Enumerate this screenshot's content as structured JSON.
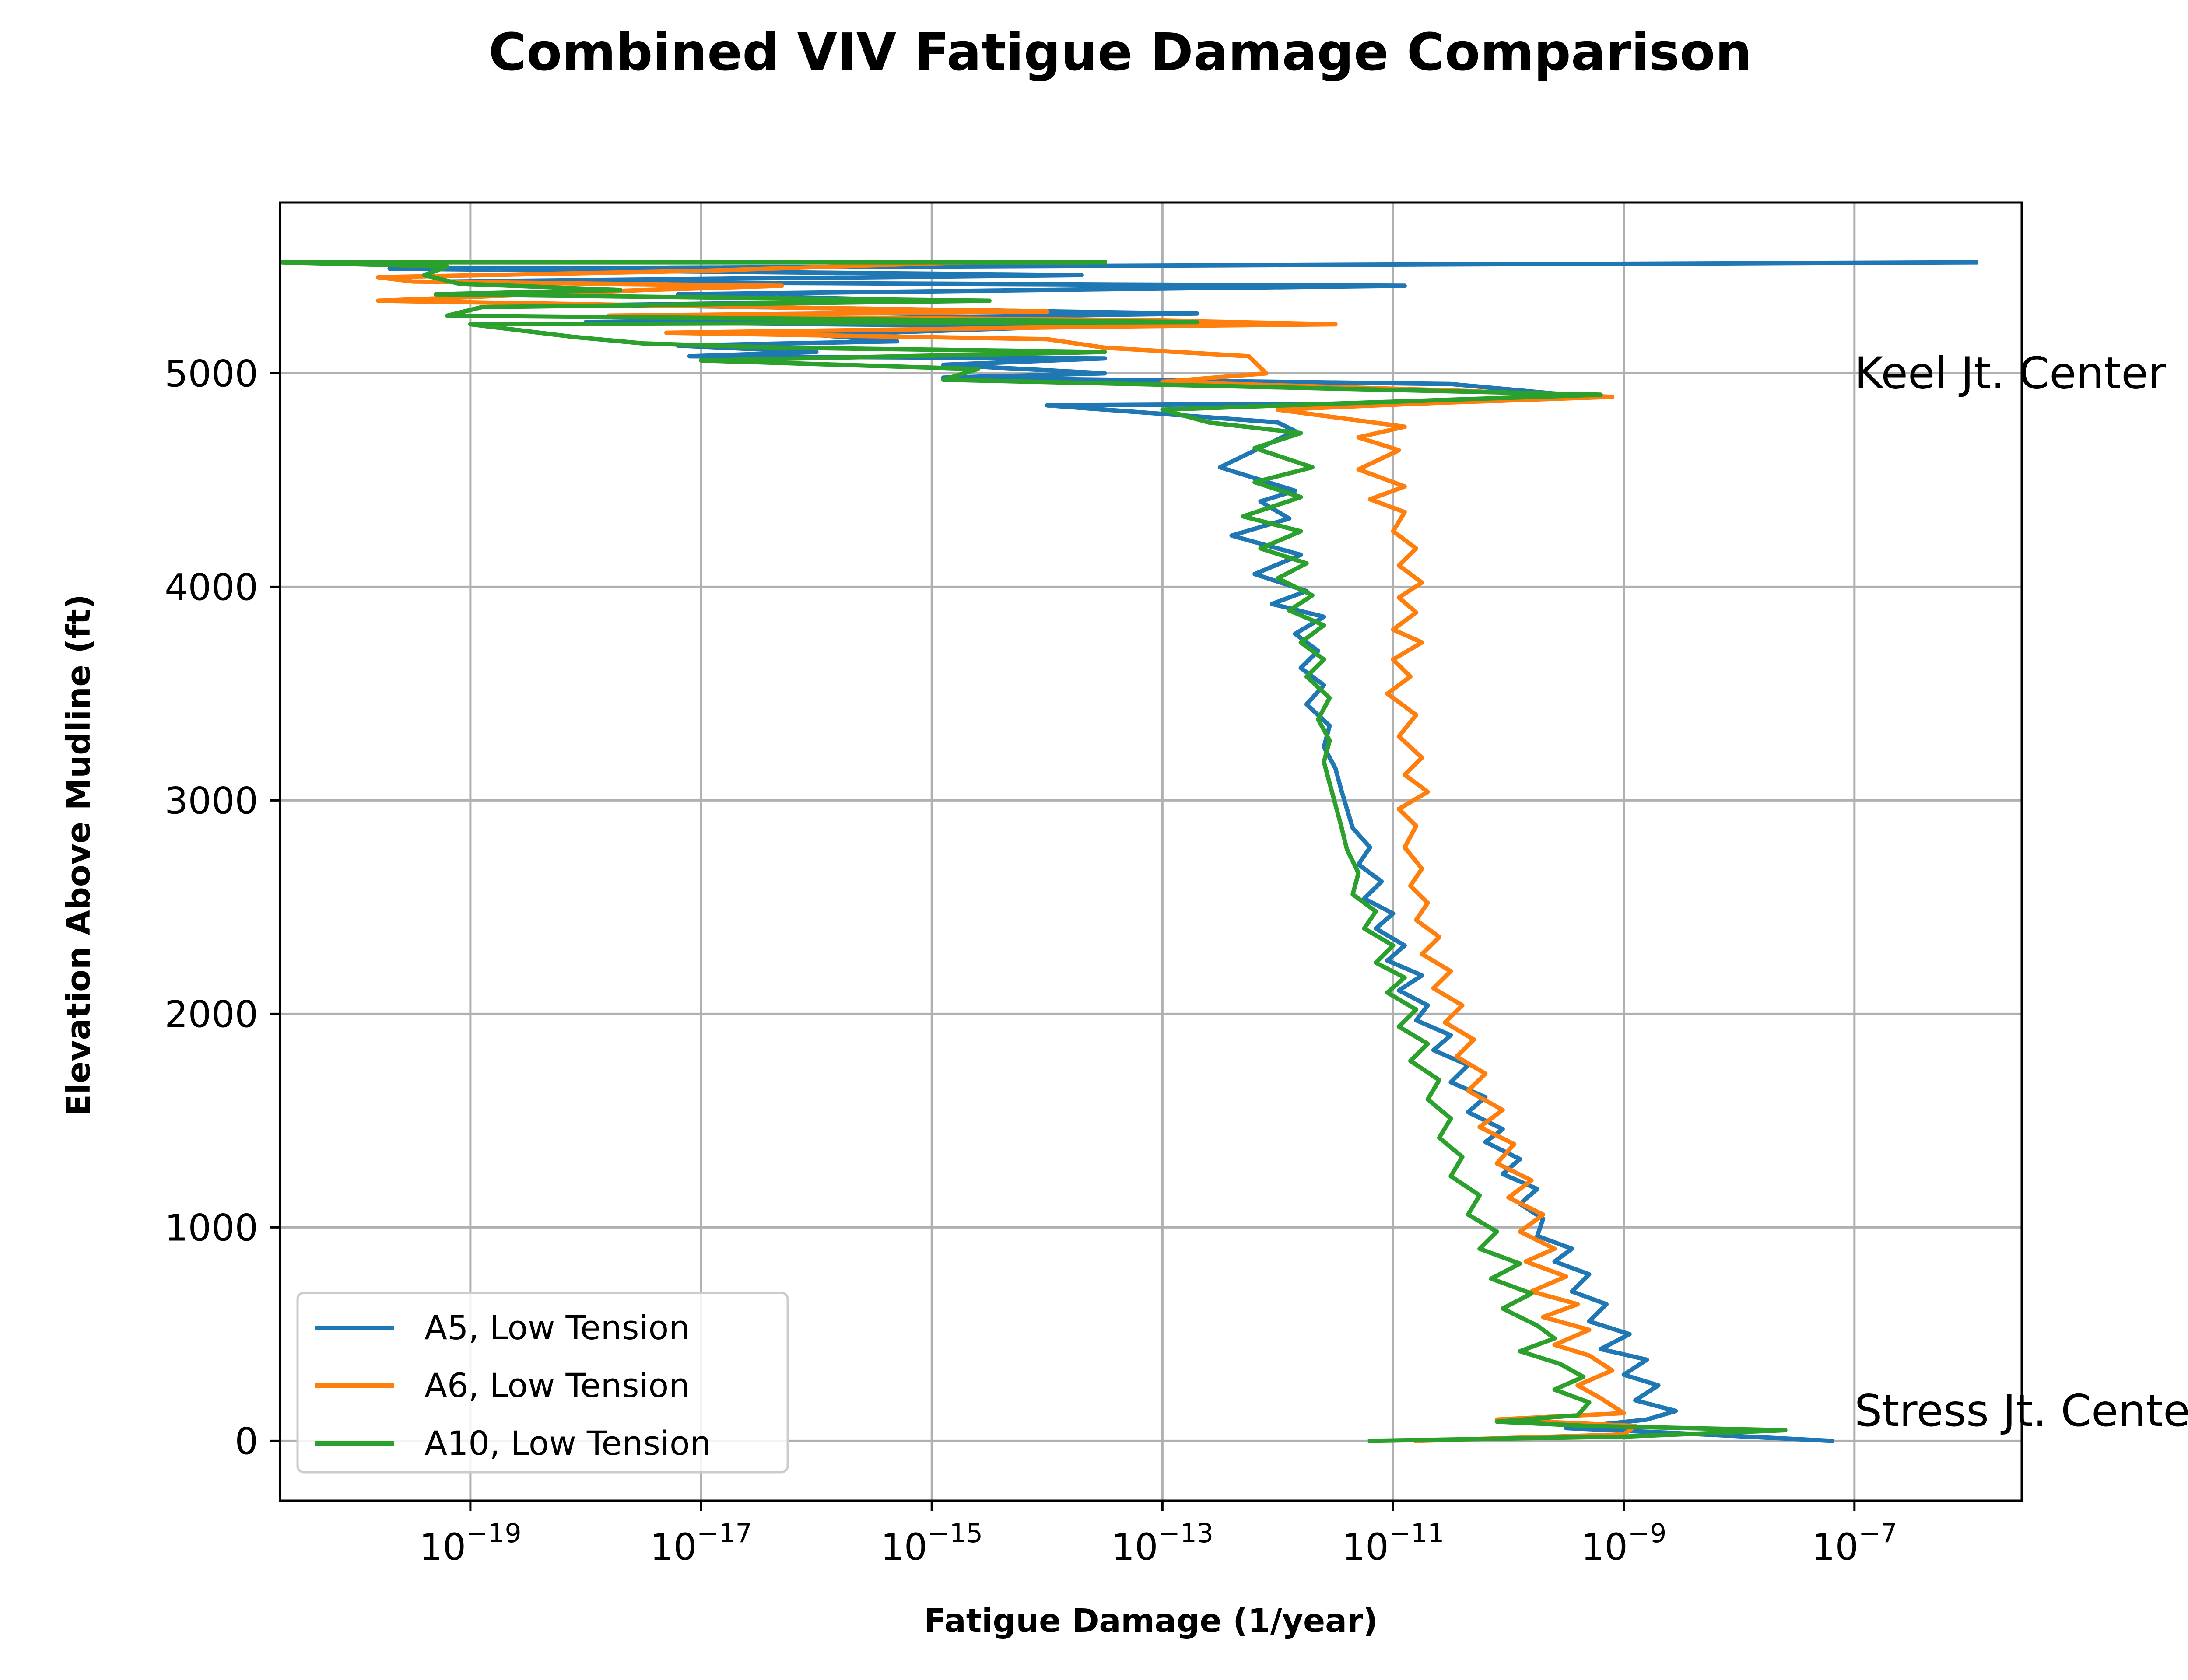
{
  "chart_data": {
    "type": "line",
    "title": "Combined VIV Fatigue Damage Comparison",
    "xlabel": "Fatigue Damage (1/year)",
    "ylabel": "Elevation Above Mudline (ft)",
    "xscale": "log",
    "xlim_log10": [
      -20.65,
      -5.55
    ],
    "ylim": [
      -280,
      5800
    ],
    "x_ticks": [
      {
        "exp": -19,
        "base": "10",
        "sup": "−19"
      },
      {
        "exp": -17,
        "base": "10",
        "sup": "−17"
      },
      {
        "exp": -15,
        "base": "10",
        "sup": "−15"
      },
      {
        "exp": -13,
        "base": "10",
        "sup": "−13"
      },
      {
        "exp": -11,
        "base": "10",
        "sup": "−11"
      },
      {
        "exp": -9,
        "base": "10",
        "sup": "−9"
      },
      {
        "exp": -7,
        "base": "10",
        "sup": "−7"
      }
    ],
    "y_ticks": [
      0,
      1000,
      2000,
      3000,
      4000,
      5000
    ],
    "grid": true,
    "legend_position": "lower-left",
    "annotations": [
      {
        "text": "Keel Jt. Center",
        "x_log10": -7.0,
        "y": 4930
      },
      {
        "text": "Stress Jt. Center",
        "x_log10": -7.0,
        "y": 70
      }
    ],
    "series": [
      {
        "name": "A5, Low Tension",
        "color": "#1f77b4",
        "points": [
          [
            -7.2,
            0
          ],
          [
            -8.3,
            30
          ],
          [
            -9.5,
            60
          ],
          [
            -8.8,
            100
          ],
          [
            -8.55,
            140
          ],
          [
            -8.9,
            190
          ],
          [
            -8.7,
            260
          ],
          [
            -9.0,
            310
          ],
          [
            -8.8,
            380
          ],
          [
            -9.2,
            430
          ],
          [
            -8.95,
            500
          ],
          [
            -9.3,
            560
          ],
          [
            -9.15,
            640
          ],
          [
            -9.45,
            700
          ],
          [
            -9.3,
            780
          ],
          [
            -9.6,
            840
          ],
          [
            -9.45,
            900
          ],
          [
            -9.75,
            960
          ],
          [
            -9.7,
            1040
          ],
          [
            -9.9,
            1110
          ],
          [
            -9.75,
            1180
          ],
          [
            -10.05,
            1250
          ],
          [
            -9.9,
            1320
          ],
          [
            -10.2,
            1400
          ],
          [
            -10.05,
            1460
          ],
          [
            -10.35,
            1540
          ],
          [
            -10.2,
            1610
          ],
          [
            -10.5,
            1680
          ],
          [
            -10.35,
            1760
          ],
          [
            -10.65,
            1830
          ],
          [
            -10.5,
            1900
          ],
          [
            -10.8,
            1970
          ],
          [
            -10.7,
            2040
          ],
          [
            -10.95,
            2110
          ],
          [
            -10.75,
            2180
          ],
          [
            -11.05,
            2250
          ],
          [
            -10.9,
            2320
          ],
          [
            -11.15,
            2400
          ],
          [
            -11.0,
            2470
          ],
          [
            -11.25,
            2540
          ],
          [
            -11.1,
            2620
          ],
          [
            -11.3,
            2700
          ],
          [
            -11.2,
            2780
          ],
          [
            -11.35,
            2870
          ],
          [
            -11.4,
            2960
          ],
          [
            -11.45,
            3050
          ],
          [
            -11.5,
            3150
          ],
          [
            -11.6,
            3250
          ],
          [
            -11.55,
            3350
          ],
          [
            -11.75,
            3450
          ],
          [
            -11.6,
            3540
          ],
          [
            -11.8,
            3620
          ],
          [
            -11.65,
            3700
          ],
          [
            -11.85,
            3780
          ],
          [
            -11.6,
            3860
          ],
          [
            -12.05,
            3920
          ],
          [
            -11.75,
            3980
          ],
          [
            -12.2,
            4060
          ],
          [
            -11.8,
            4150
          ],
          [
            -12.4,
            4240
          ],
          [
            -11.9,
            4320
          ],
          [
            -12.15,
            4400
          ],
          [
            -11.85,
            4450
          ],
          [
            -12.5,
            4560
          ],
          [
            -11.85,
            4730
          ],
          [
            -12.0,
            4770
          ],
          [
            -14.0,
            4850
          ],
          [
            -10.7,
            4860
          ],
          [
            -9.5,
            4900
          ],
          [
            -10.5,
            4950
          ],
          [
            -14.9,
            4980
          ],
          [
            -13.5,
            5000
          ],
          [
            -14.9,
            5040
          ],
          [
            -13.5,
            5070
          ],
          [
            -17.1,
            5080
          ],
          [
            -16.0,
            5100
          ],
          [
            -17.2,
            5130
          ],
          [
            -15.3,
            5150
          ],
          [
            -16.0,
            5180
          ],
          [
            -13.8,
            5220
          ],
          [
            -18.0,
            5240
          ],
          [
            -12.7,
            5280
          ],
          [
            -17.8,
            5320
          ],
          [
            -15.0,
            5340
          ],
          [
            -17.2,
            5370
          ],
          [
            -10.9,
            5410
          ],
          [
            -19.2,
            5430
          ],
          [
            -13.7,
            5460
          ],
          [
            -19.7,
            5490
          ],
          [
            -5.95,
            5520
          ]
        ]
      },
      {
        "name": "A6, Low Tension",
        "color": "#ff7f0e",
        "points": [
          [
            -10.8,
            0
          ],
          [
            -9.0,
            30
          ],
          [
            -8.9,
            70
          ],
          [
            -10.1,
            100
          ],
          [
            -9.0,
            130
          ],
          [
            -9.2,
            200
          ],
          [
            -9.4,
            260
          ],
          [
            -9.1,
            330
          ],
          [
            -9.3,
            400
          ],
          [
            -9.6,
            450
          ],
          [
            -9.3,
            520
          ],
          [
            -9.7,
            580
          ],
          [
            -9.4,
            640
          ],
          [
            -9.8,
            700
          ],
          [
            -9.5,
            770
          ],
          [
            -9.85,
            840
          ],
          [
            -9.6,
            900
          ],
          [
            -9.9,
            980
          ],
          [
            -9.7,
            1060
          ],
          [
            -10.0,
            1140
          ],
          [
            -9.8,
            1220
          ],
          [
            -10.1,
            1300
          ],
          [
            -9.95,
            1390
          ],
          [
            -10.25,
            1470
          ],
          [
            -10.05,
            1550
          ],
          [
            -10.35,
            1640
          ],
          [
            -10.2,
            1720
          ],
          [
            -10.45,
            1800
          ],
          [
            -10.3,
            1880
          ],
          [
            -10.55,
            1960
          ],
          [
            -10.4,
            2040
          ],
          [
            -10.65,
            2120
          ],
          [
            -10.5,
            2200
          ],
          [
            -10.75,
            2280
          ],
          [
            -10.6,
            2360
          ],
          [
            -10.8,
            2440
          ],
          [
            -10.7,
            2520
          ],
          [
            -10.85,
            2600
          ],
          [
            -10.75,
            2680
          ],
          [
            -10.9,
            2780
          ],
          [
            -10.8,
            2880
          ],
          [
            -10.95,
            2960
          ],
          [
            -10.7,
            3040
          ],
          [
            -10.9,
            3120
          ],
          [
            -10.75,
            3200
          ],
          [
            -10.95,
            3300
          ],
          [
            -10.8,
            3400
          ],
          [
            -11.05,
            3500
          ],
          [
            -10.85,
            3580
          ],
          [
            -11.0,
            3660
          ],
          [
            -10.75,
            3740
          ],
          [
            -11.0,
            3800
          ],
          [
            -10.8,
            3880
          ],
          [
            -10.95,
            3950
          ],
          [
            -10.75,
            4020
          ],
          [
            -10.95,
            4100
          ],
          [
            -10.8,
            4180
          ],
          [
            -11.0,
            4260
          ],
          [
            -10.9,
            4350
          ],
          [
            -11.2,
            4410
          ],
          [
            -10.9,
            4470
          ],
          [
            -11.3,
            4550
          ],
          [
            -10.95,
            4640
          ],
          [
            -11.3,
            4700
          ],
          [
            -10.9,
            4750
          ],
          [
            -12.0,
            4830
          ],
          [
            -10.7,
            4860
          ],
          [
            -9.1,
            4890
          ],
          [
            -10.5,
            4920
          ],
          [
            -13.0,
            4960
          ],
          [
            -12.1,
            5000
          ],
          [
            -12.25,
            5080
          ],
          [
            -13.5,
            5120
          ],
          [
            -14.0,
            5160
          ],
          [
            -17.3,
            5190
          ],
          [
            -13.3,
            5220
          ],
          [
            -11.5,
            5230
          ],
          [
            -13.3,
            5250
          ],
          [
            -17.8,
            5270
          ],
          [
            -14.0,
            5290
          ],
          [
            -16.5,
            5310
          ],
          [
            -19.8,
            5340
          ],
          [
            -17.5,
            5390
          ],
          [
            -16.3,
            5410
          ],
          [
            -19.5,
            5430
          ],
          [
            -19.8,
            5450
          ],
          [
            -17.0,
            5480
          ],
          [
            -14.7,
            5520
          ],
          [
            -13.7,
            5520
          ]
        ]
      },
      {
        "name": "A10, Low Tension",
        "color": "#2ca02c",
        "points": [
          [
            -11.2,
            0
          ],
          [
            -9.0,
            20
          ],
          [
            -7.6,
            50
          ],
          [
            -9.3,
            70
          ],
          [
            -10.1,
            90
          ],
          [
            -9.4,
            120
          ],
          [
            -9.3,
            180
          ],
          [
            -9.6,
            240
          ],
          [
            -9.35,
            300
          ],
          [
            -9.55,
            360
          ],
          [
            -9.9,
            420
          ],
          [
            -9.6,
            480
          ],
          [
            -9.75,
            540
          ],
          [
            -10.05,
            620
          ],
          [
            -9.8,
            690
          ],
          [
            -10.15,
            760
          ],
          [
            -9.9,
            830
          ],
          [
            -10.25,
            900
          ],
          [
            -10.1,
            980
          ],
          [
            -10.35,
            1060
          ],
          [
            -10.25,
            1150
          ],
          [
            -10.5,
            1240
          ],
          [
            -10.4,
            1330
          ],
          [
            -10.6,
            1420
          ],
          [
            -10.5,
            1510
          ],
          [
            -10.7,
            1600
          ],
          [
            -10.6,
            1690
          ],
          [
            -10.85,
            1780
          ],
          [
            -10.7,
            1860
          ],
          [
            -10.95,
            1940
          ],
          [
            -10.8,
            2020
          ],
          [
            -11.05,
            2100
          ],
          [
            -10.9,
            2170
          ],
          [
            -11.15,
            2240
          ],
          [
            -11.0,
            2320
          ],
          [
            -11.25,
            2400
          ],
          [
            -11.15,
            2480
          ],
          [
            -11.35,
            2560
          ],
          [
            -11.3,
            2660
          ],
          [
            -11.4,
            2770
          ],
          [
            -11.45,
            2880
          ],
          [
            -11.5,
            2980
          ],
          [
            -11.55,
            3080
          ],
          [
            -11.6,
            3180
          ],
          [
            -11.55,
            3280
          ],
          [
            -11.65,
            3380
          ],
          [
            -11.55,
            3480
          ],
          [
            -11.75,
            3580
          ],
          [
            -11.6,
            3660
          ],
          [
            -11.8,
            3740
          ],
          [
            -11.6,
            3820
          ],
          [
            -11.9,
            3890
          ],
          [
            -11.7,
            3960
          ],
          [
            -12.0,
            4040
          ],
          [
            -11.75,
            4110
          ],
          [
            -12.15,
            4180
          ],
          [
            -11.8,
            4260
          ],
          [
            -12.3,
            4330
          ],
          [
            -11.8,
            4420
          ],
          [
            -12.2,
            4490
          ],
          [
            -11.7,
            4560
          ],
          [
            -12.2,
            4650
          ],
          [
            -11.8,
            4720
          ],
          [
            -12.6,
            4770
          ],
          [
            -13.0,
            4830
          ],
          [
            -11.4,
            4860
          ],
          [
            -9.2,
            4900
          ],
          [
            -14.9,
            4970
          ],
          [
            -14.6,
            5020
          ],
          [
            -17.0,
            5060
          ],
          [
            -13.5,
            5100
          ],
          [
            -16.3,
            5120
          ],
          [
            -17.5,
            5140
          ],
          [
            -18.1,
            5170
          ],
          [
            -19.0,
            5230
          ],
          [
            -12.7,
            5240
          ],
          [
            -19.2,
            5270
          ],
          [
            -18.9,
            5310
          ],
          [
            -14.5,
            5340
          ],
          [
            -19.3,
            5370
          ],
          [
            -17.7,
            5390
          ],
          [
            -19.1,
            5420
          ],
          [
            -19.4,
            5460
          ],
          [
            -19.2,
            5500
          ],
          [
            -20.65,
            5520
          ],
          [
            -13.5,
            5520
          ]
        ]
      }
    ]
  }
}
